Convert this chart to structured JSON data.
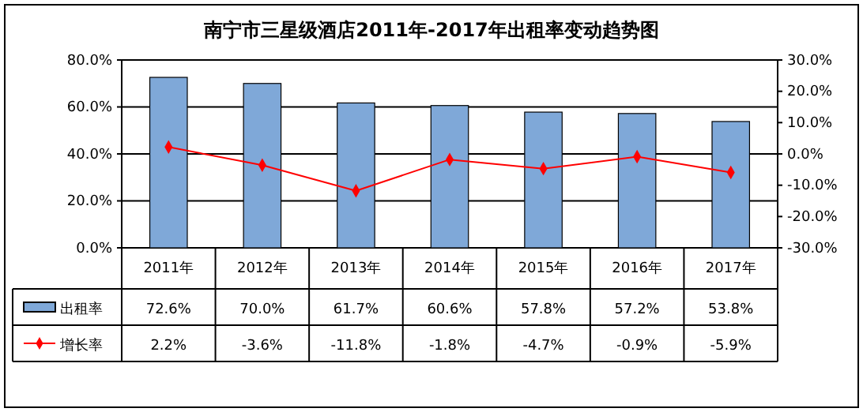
{
  "chart_data": {
    "type": "bar",
    "title": "南宁市三星级酒店2011年-2017年出租率变动趋势图",
    "categories": [
      "2011年",
      "2012年",
      "2013年",
      "2014年",
      "2015年",
      "2016年",
      "2017年"
    ],
    "series": [
      {
        "name": "出租率",
        "color": "#7fa8d8",
        "values": [
          72.6,
          70.0,
          61.7,
          60.6,
          57.8,
          57.2,
          53.8
        ],
        "value_labels": [
          "72.6%",
          "70.0%",
          "61.7%",
          "60.6%",
          "57.8%",
          "57.2%",
          "53.8%"
        ]
      },
      {
        "name": "增长率",
        "type": "line",
        "axis": "y2",
        "color": "#ff0000",
        "marker": "diamond",
        "values": [
          2.2,
          -3.6,
          -11.8,
          -1.8,
          -4.7,
          -0.9,
          -5.9
        ],
        "value_labels": [
          "2.2%",
          "-3.6%",
          "-11.8%",
          "-1.8%",
          "-4.7%",
          "-0.9%",
          "-5.9%"
        ]
      }
    ],
    "ylim": [
      0,
      80
    ],
    "yticks": [
      {
        "value": 0,
        "label": "0.0%"
      },
      {
        "value": 20,
        "label": "20.0%"
      },
      {
        "value": 40,
        "label": "40.0%"
      },
      {
        "value": 60,
        "label": "60.0%"
      },
      {
        "value": 80,
        "label": "80.0%"
      }
    ],
    "y2lim": [
      -30,
      30
    ],
    "y2ticks": [
      {
        "value": -30,
        "label": "-30.0%"
      },
      {
        "value": -20,
        "label": "-20.0%"
      },
      {
        "value": -10,
        "label": "-10.0%"
      },
      {
        "value": 0,
        "label": "0.0%"
      },
      {
        "value": 10,
        "label": "10.0%"
      },
      {
        "value": 20,
        "label": "20.0%"
      },
      {
        "value": 30,
        "label": "30.0%"
      }
    ],
    "grid": "y",
    "legend": "bottom"
  }
}
